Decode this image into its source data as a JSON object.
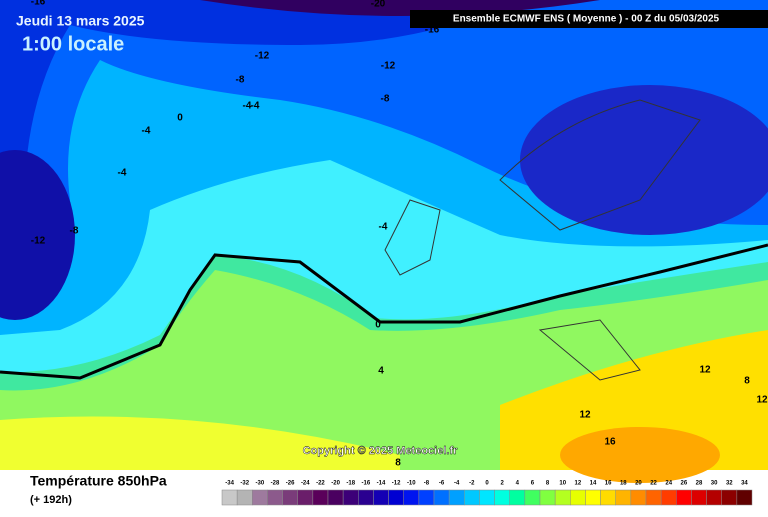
{
  "header": {
    "date": "Jeudi 13 mars 2025",
    "time": "1:00 locale",
    "run": "Ensemble ECMWF ENS  ( Moyenne )  -  00 Z du 05/03/2025"
  },
  "map": {
    "contour_labels": [
      -16,
      -20,
      -16,
      -12,
      -12,
      -8,
      -8,
      -4,
      -4,
      0,
      -4,
      -4,
      -12,
      -8,
      -4,
      0,
      4,
      12,
      12,
      8,
      12,
      16,
      8
    ],
    "copyright": "Copyright © 2025 Meteociel.fr"
  },
  "legend": {
    "title": "Température 850hPa",
    "subtitle": "(+ 192h)",
    "values": [
      -34,
      -32,
      -30,
      -28,
      -26,
      -24,
      -22,
      -20,
      -18,
      -16,
      -14,
      -12,
      -10,
      -8,
      -6,
      -4,
      -2,
      0,
      2,
      4,
      6,
      8,
      10,
      12,
      14,
      16,
      18,
      20,
      22,
      24,
      26,
      28,
      30,
      32,
      34
    ],
    "colors": [
      "#c8c8c8",
      "#b4b4b4",
      "#9e7a9e",
      "#8c5a8c",
      "#7a3c7a",
      "#6a1e6a",
      "#5a005a",
      "#4a0060",
      "#3c0078",
      "#2a0090",
      "#1400b4",
      "#0000d2",
      "#0014f0",
      "#0040ff",
      "#0070ff",
      "#00a0ff",
      "#00c8ff",
      "#00e6ff",
      "#00ffe0",
      "#00ffa0",
      "#40ff60",
      "#80ff40",
      "#b4ff20",
      "#e6ff00",
      "#ffff00",
      "#ffdc00",
      "#ffb400",
      "#ff8c00",
      "#ff6400",
      "#ff3c00",
      "#ff0000",
      "#dc0000",
      "#b40000",
      "#8c0000",
      "#600000"
    ]
  }
}
